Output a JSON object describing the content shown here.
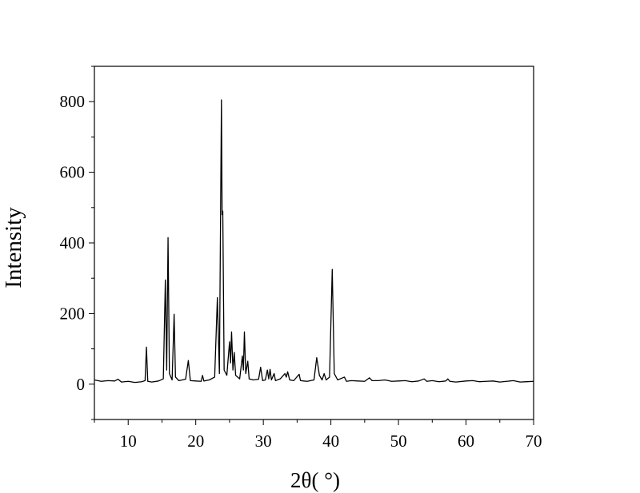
{
  "chart_data": {
    "type": "line",
    "xlabel": "2θ( °)",
    "ylabel": "Intensity",
    "x": [
      5,
      6,
      7,
      8,
      8.5,
      9,
      10,
      11,
      12,
      12.5,
      12.7,
      12.9,
      13.5,
      14.5,
      15.2,
      15.5,
      15.7,
      15.9,
      16.1,
      16.5,
      16.8,
      17.0,
      17.5,
      18.5,
      18.9,
      19.2,
      20,
      20.8,
      21.0,
      21.2,
      22,
      22.8,
      23.2,
      23.5,
      23.8,
      23.9,
      24.0,
      24.2,
      24.6,
      25.0,
      25.15,
      25.3,
      25.5,
      25.7,
      25.9,
      26.5,
      26.9,
      27.05,
      27.2,
      27.4,
      27.7,
      27.9,
      28.5,
      29.3,
      29.6,
      29.9,
      30.3,
      30.6,
      30.8,
      31.0,
      31.2,
      31.6,
      31.8,
      32.5,
      33.2,
      33.4,
      33.6,
      33.9,
      34.5,
      35.3,
      35.5,
      36.5,
      37.5,
      37.9,
      38.3,
      38.7,
      39.0,
      39.3,
      39.8,
      40.2,
      40.5,
      41.0,
      42.0,
      42.3,
      43,
      44,
      45.0,
      45.7,
      46.1,
      47,
      48,
      49,
      50,
      51,
      52,
      53,
      53.8,
      54.2,
      55,
      56,
      57,
      57.3,
      57.6,
      58.5,
      60,
      61,
      62,
      63,
      64,
      65,
      66,
      67,
      68,
      69,
      70
    ],
    "series": [
      {
        "color": "#000000",
        "values": [
          12,
          8,
          10,
          9,
          14,
          6,
          8,
          5,
          7,
          10,
          105,
          8,
          6,
          9,
          15,
          295,
          40,
          415,
          30,
          12,
          198,
          20,
          10,
          14,
          67,
          10,
          9,
          8,
          25,
          9,
          12,
          20,
          245,
          30,
          805,
          480,
          490,
          40,
          25,
          120,
          60,
          148,
          40,
          90,
          25,
          15,
          80,
          40,
          148,
          30,
          65,
          15,
          12,
          14,
          48,
          10,
          12,
          40,
          15,
          42,
          12,
          30,
          10,
          15,
          30,
          20,
          35,
          12,
          10,
          28,
          10,
          8,
          12,
          75,
          25,
          12,
          30,
          12,
          20,
          325,
          30,
          12,
          20,
          8,
          10,
          9,
          8,
          18,
          10,
          10,
          12,
          8,
          9,
          10,
          7,
          9,
          15,
          8,
          10,
          7,
          9,
          15,
          8,
          6,
          9,
          10,
          7,
          8,
          9,
          6,
          8,
          10,
          6,
          7,
          8
        ]
      }
    ],
    "xlim": [
      5,
      70
    ],
    "xticks": [
      10,
      20,
      30,
      40,
      50,
      60,
      70
    ],
    "xminorticks": [
      5,
      15,
      25,
      35,
      45,
      55,
      65
    ],
    "ylim": [
      -100,
      900
    ],
    "yticks": [
      0,
      200,
      400,
      600,
      800
    ],
    "yminorticks": [
      -100,
      100,
      300,
      500,
      700,
      900
    ],
    "grid": false
  }
}
